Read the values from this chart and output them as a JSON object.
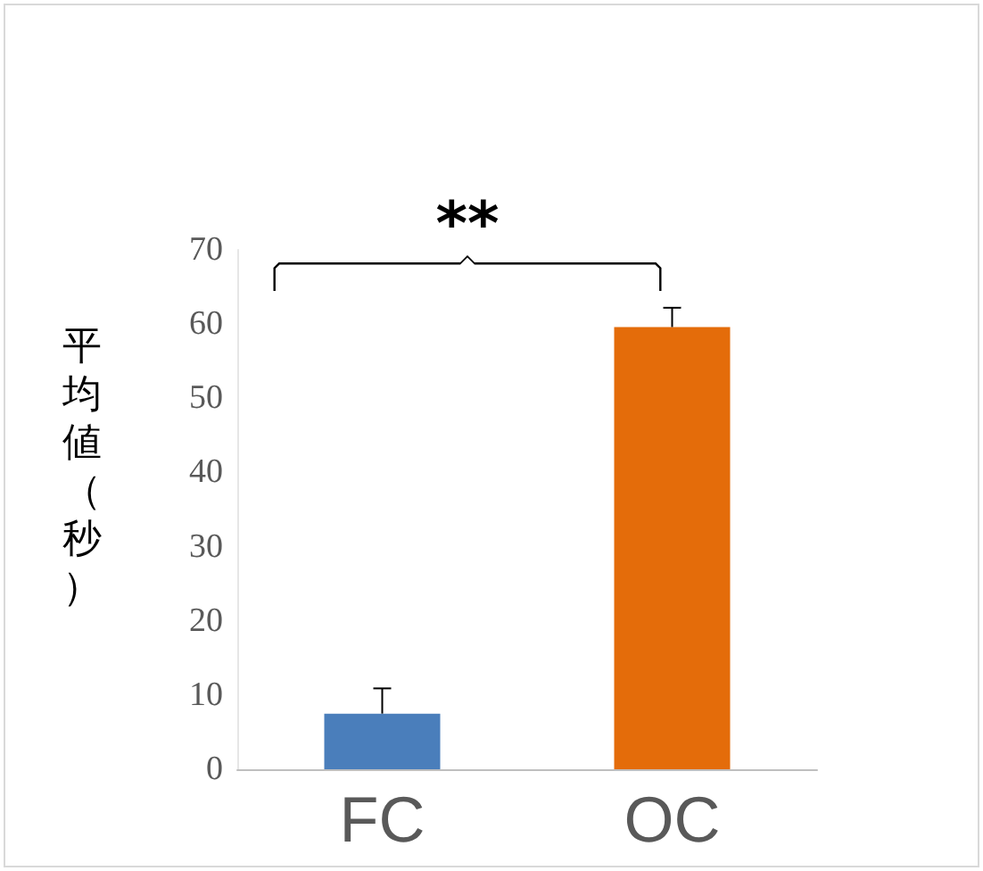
{
  "chart_data": {
    "type": "bar",
    "ylabel": "平均値（秒）",
    "categories": [
      "FC",
      "OC"
    ],
    "values": [
      7.5,
      59.6
    ],
    "colors": [
      "#4a7ebb",
      "#e46c0a"
    ],
    "errors": [
      [
        7.5,
        10.9
      ],
      [
        59.6,
        62.2
      ]
    ],
    "ylim": [
      0,
      70
    ],
    "yticks": [
      0,
      10,
      20,
      30,
      40,
      50,
      60,
      70
    ],
    "grid": false,
    "annotations": [
      "**"
    ]
  }
}
